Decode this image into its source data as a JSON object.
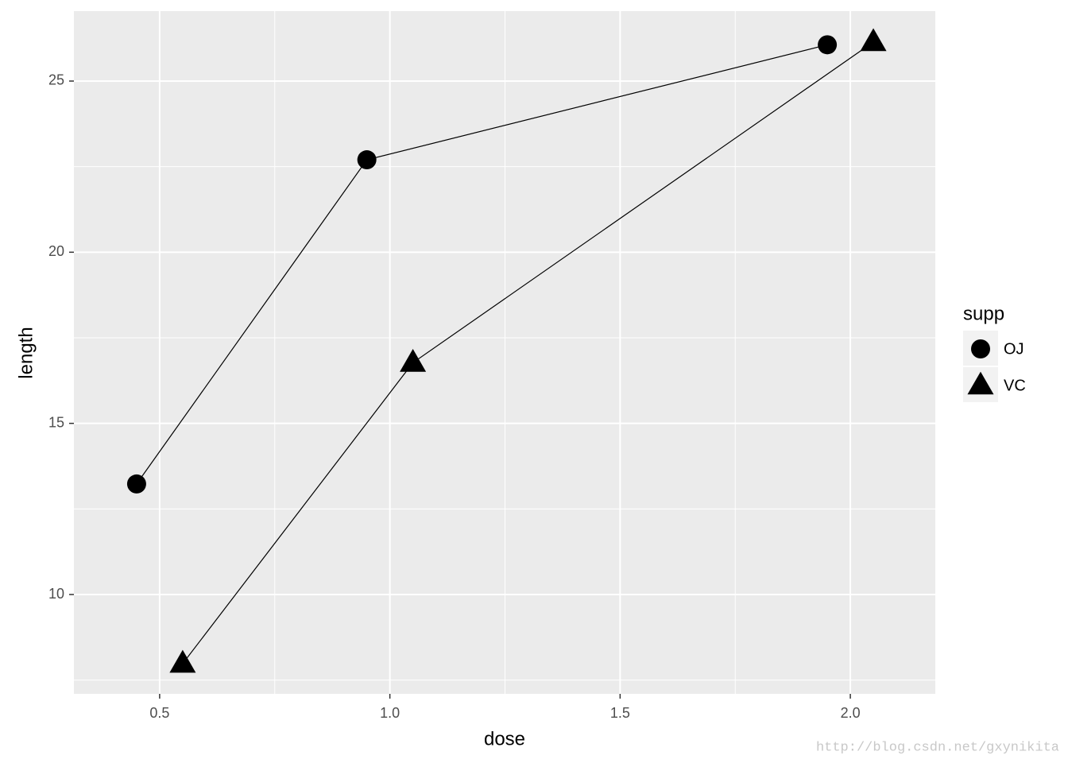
{
  "chart_data": {
    "type": "line",
    "xlabel": "dose",
    "ylabel": "length",
    "xlim": [
      0.3138,
      2.1845
    ],
    "ylim": [
      7.098,
      27.043
    ],
    "xticks": [
      {
        "value": 0.5,
        "label": "0.5"
      },
      {
        "value": 1,
        "label": "1.0"
      },
      {
        "value": 1.5,
        "label": "1.5"
      },
      {
        "value": 2,
        "label": "2.0"
      }
    ],
    "yticks": [
      10,
      15,
      20,
      25
    ],
    "minor_xticks": [
      0.75,
      1.25,
      1.75
    ],
    "minor_yticks": [
      7.5,
      12.5,
      17.5,
      22.5
    ],
    "grid": true,
    "legend_title": "supp",
    "legend_position": "right",
    "series": [
      {
        "name": "OJ",
        "color": "#000000",
        "shape": "circle",
        "x": [
          0.45,
          0.95,
          1.95
        ],
        "values": [
          13.23,
          22.7,
          26.06
        ]
      },
      {
        "name": "VC",
        "color": "#000000",
        "shape": "triangle",
        "x": [
          0.55,
          1.05,
          2.05
        ],
        "values": [
          7.98,
          16.77,
          26.14
        ]
      }
    ],
    "watermark": "http://blog.csdn.net/gxynikita"
  }
}
